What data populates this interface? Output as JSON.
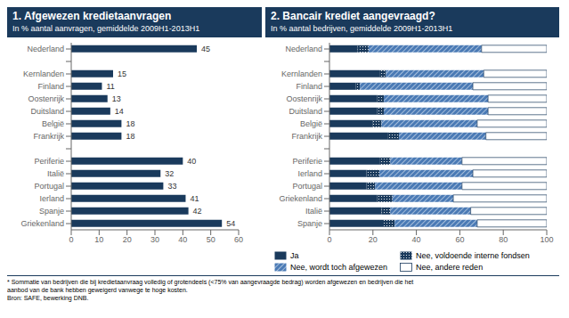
{
  "chart_data": [
    {
      "type": "bar",
      "orientation": "horizontal",
      "title": "1. Afgewezen kredietaanvragen",
      "subtitle": "In % aantal aanvragen, gemiddelde 2009H1-2013H1",
      "categories": [
        "Nederland",
        null,
        "Kernlanden",
        "Finland",
        "Oostenrijk",
        "Duitsland",
        "België",
        "Frankrijk",
        null,
        "Periferie",
        "Italië",
        "Portugal",
        "Ierland",
        "Spanje",
        "Griekenland"
      ],
      "values": [
        45,
        null,
        15,
        11,
        13,
        14,
        18,
        18,
        null,
        40,
        32,
        33,
        41,
        42,
        54
      ],
      "color": "#1a3a5c",
      "xlim": [
        0,
        60
      ],
      "xticks": [
        0,
        10,
        20,
        30,
        40,
        50,
        60
      ],
      "data_labels": true,
      "grid": false
    },
    {
      "type": "bar",
      "orientation": "horizontal",
      "stacked": true,
      "title": "2. Bancair krediet aangevraagd?",
      "subtitle": "In % aantal bedrijven, gemiddelde 2009H1-2013H1",
      "categories": [
        "Nederland",
        null,
        "Kernlanden",
        "Finland",
        "Oostenrijk",
        "Duitsland",
        "België",
        "Frankrijk",
        null,
        "Periferie",
        "Ierland",
        "Portugal",
        "Griekenland",
        "Italië",
        "Spanje"
      ],
      "series": [
        {
          "name": "Ja",
          "color": "#1a3a5c",
          "values": [
            13,
            null,
            23,
            12,
            22,
            22,
            20,
            27,
            null,
            23,
            17,
            17,
            22,
            24,
            25
          ]
        },
        {
          "name": "Nee, voldoende interne fondsen",
          "color": "#1a3a5c",
          "values": [
            5,
            null,
            3,
            2,
            3,
            3,
            4,
            5,
            null,
            5,
            6,
            4,
            7,
            4,
            5
          ]
        },
        {
          "name": "Nee, wordt toch afgewezen",
          "color": "#4a7ab5",
          "values": [
            52,
            null,
            45,
            52,
            48,
            48,
            44,
            40,
            null,
            33,
            43,
            40,
            28,
            37,
            38
          ]
        },
        {
          "name": "Nee, andere reden",
          "color": "#ffffff",
          "values": [
            30,
            null,
            29,
            34,
            27,
            27,
            32,
            28,
            null,
            39,
            34,
            39,
            43,
            35,
            32
          ]
        }
      ],
      "xlim": [
        0,
        100
      ],
      "xticks": [
        0,
        20,
        40,
        60,
        80,
        100
      ],
      "legend": "bottom",
      "grid": false,
      "annotations": [
        "* Sommatie van bedrijven die bij kredietaanvraag volledig of grotendeels (<75% van aangevraagde bedrag) worden afgewezen en bedrijven die het",
        "aanbod van de bank hebben geweigerd vanwege te hoge kosten.",
        "Bron: SAFE, bewerking DNB."
      ]
    }
  ]
}
